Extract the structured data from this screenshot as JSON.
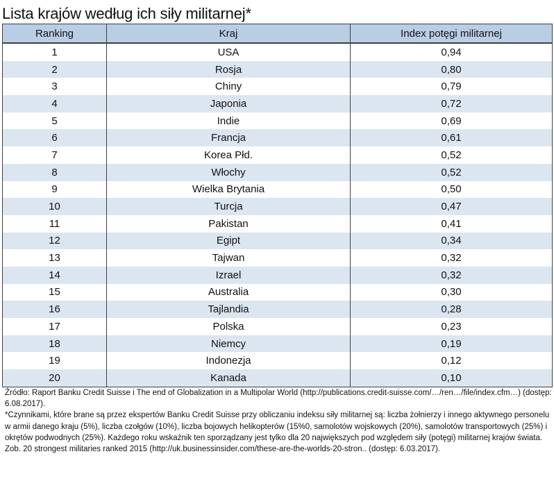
{
  "title": "Lista krajów według ich siły militarnej*",
  "table": {
    "headers": {
      "ranking": "Ranking",
      "country": "Kraj",
      "index": "Index potęgi militarnej"
    },
    "rows": [
      {
        "rank": "1",
        "country": "USA",
        "index": "0,94"
      },
      {
        "rank": "2",
        "country": "Rosja",
        "index": "0,80"
      },
      {
        "rank": "3",
        "country": "Chiny",
        "index": "0,79"
      },
      {
        "rank": "4",
        "country": "Japonia",
        "index": "0,72"
      },
      {
        "rank": "5",
        "country": "Indie",
        "index": "0,69"
      },
      {
        "rank": "6",
        "country": "Francja",
        "index": "0,61"
      },
      {
        "rank": "7",
        "country": "Korea Płd.",
        "index": "0,52"
      },
      {
        "rank": "8",
        "country": "Włochy",
        "index": "0,52"
      },
      {
        "rank": "9",
        "country": "Wielka Brytania",
        "index": "0,50"
      },
      {
        "rank": "10",
        "country": "Turcja",
        "index": "0,47"
      },
      {
        "rank": "11",
        "country": "Pakistan",
        "index": "0,41"
      },
      {
        "rank": "12",
        "country": "Egipt",
        "index": "0,34"
      },
      {
        "rank": "13",
        "country": "Tajwan",
        "index": "0,32"
      },
      {
        "rank": "14",
        "country": "Izrael",
        "index": "0,32"
      },
      {
        "rank": "15",
        "country": "Australia",
        "index": "0,30"
      },
      {
        "rank": "16",
        "country": "Tajlandia",
        "index": "0,28"
      },
      {
        "rank": "17",
        "country": "Polska",
        "index": "0,23"
      },
      {
        "rank": "18",
        "country": "Niemcy",
        "index": "0,19"
      },
      {
        "rank": "19",
        "country": "Indonezja",
        "index": "0,12"
      },
      {
        "rank": "20",
        "country": "Kanada",
        "index": "0,10"
      }
    ]
  },
  "notes": {
    "source": "Źródło: Raport Banku Credit Suisse i The end of Globalization in a Multipolar World (http://publications.credit-suisse.com/…/ren…/file/index.cfm…) (dostęp: 6.08.2017).",
    "footnote": "*Czynnikami, które brane są przez ekspertów Banku Credit Suisse przy obliczaniu indeksu siły militarnej są: liczba żołnierzy i innego aktywnego personelu w armii danego kraju (5%), liczba czołgów (10%), liczba bojowych helikopterów (15%0, samolotów wojskowych (20%), samolotów transportowych (25%) i  okrętów podwodnych (25%). Każdego roku wskaźnik ten sporządzany jest tylko dla 20 największych pod względem siły (potęgi) militarnej krajów świata. Zob. 20 strongest militaries ranked 2015 (http://uk.businessinsider.com/these-are-the-worlds-20-stron.. (dostęp: 6.03.2017)."
  },
  "colors": {
    "header_background": "#b9cde5",
    "stripe_background": "#dce6f1",
    "border": "#3f3f3f"
  }
}
